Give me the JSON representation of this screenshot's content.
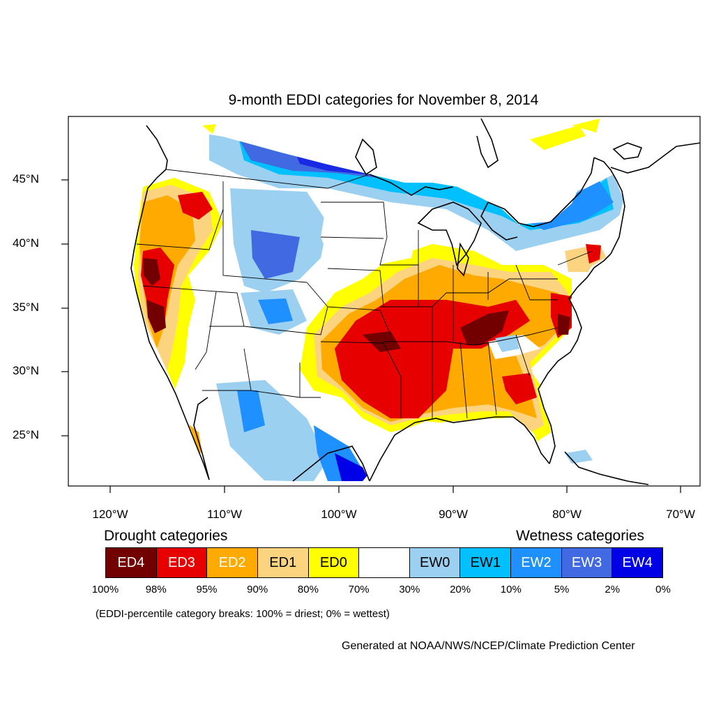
{
  "title": "9-month EDDI categories for November 8, 2014",
  "lat_labels": [
    "45°N",
    "40°N",
    "35°N",
    "30°N",
    "25°N"
  ],
  "lon_labels": [
    "120°W",
    "110°W",
    "100°W",
    "90°W",
    "80°W",
    "70°W"
  ],
  "legend": {
    "drought_heading": "Drought categories",
    "wetness_heading": "Wetness categories",
    "categories": [
      {
        "label": "ED4",
        "color": "#730000",
        "text_color": "#ffffff"
      },
      {
        "label": "ED3",
        "color": "#e60000",
        "text_color": "#ffffff"
      },
      {
        "label": "ED2",
        "color": "#ffaa00",
        "text_color": "#ffffff"
      },
      {
        "label": "ED1",
        "color": "#fcd37f",
        "text_color": "#000000"
      },
      {
        "label": "ED0",
        "color": "#ffff00",
        "text_color": "#000000"
      },
      {
        "label": "",
        "color": "#ffffff",
        "text_color": "#000000"
      },
      {
        "label": "EW0",
        "color": "#9cd0f0",
        "text_color": "#000000"
      },
      {
        "label": "EW1",
        "color": "#00c0ff",
        "text_color": "#000000"
      },
      {
        "label": "EW2",
        "color": "#1e90ff",
        "text_color": "#ffffff"
      },
      {
        "label": "EW3",
        "color": "#4169e1",
        "text_color": "#ffffff"
      },
      {
        "label": "EW4",
        "color": "#0000e6",
        "text_color": "#ffffff"
      }
    ],
    "breaks": [
      "100%",
      "98%",
      "95%",
      "90%",
      "80%",
      "70%",
      "30%",
      "20%",
      "10%",
      "5%",
      "2%",
      "0%"
    ]
  },
  "note": "(EDDI-percentile category breaks: 100% = driest; 0% = wettest)",
  "credit": "Generated at NOAA/NWS/NCEP/Climate Prediction Center"
}
